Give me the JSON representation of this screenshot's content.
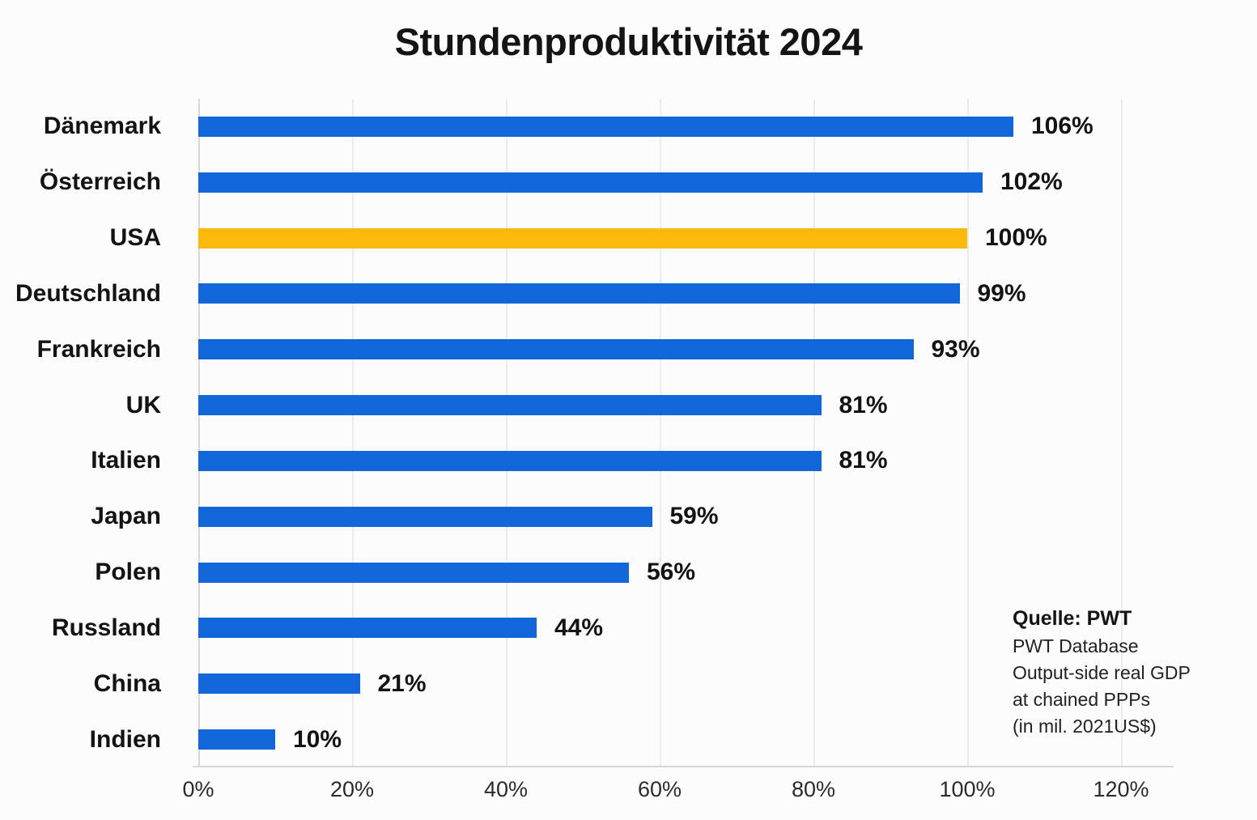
{
  "chart_data": {
    "type": "bar",
    "orientation": "horizontal",
    "title": "Stundenproduktivität 2024",
    "categories": [
      "Dänemark",
      "Österreich",
      "USA",
      "Deutschland",
      "Frankreich",
      "UK",
      "Italien",
      "Japan",
      "Polen",
      "Russland",
      "China",
      "Indien"
    ],
    "values": [
      106,
      102,
      100,
      99,
      93,
      81,
      81,
      59,
      56,
      44,
      21,
      10
    ],
    "value_labels": [
      "106%",
      "102%",
      "100%",
      "99%",
      "93%",
      "81%",
      "81%",
      "59%",
      "56%",
      "44%",
      "21%",
      "10%"
    ],
    "highlight_index": 2,
    "colors": {
      "bar": "#1167d9",
      "highlight": "#fcb80b",
      "background": "#fdfcfc",
      "gridline": "#edebea",
      "axis_line": "#d8d6d5",
      "text": "#141414"
    },
    "xlim": [
      0,
      120
    ],
    "x_ticks": [
      {
        "value": 0,
        "label": "0%"
      },
      {
        "value": 20,
        "label": "20%"
      },
      {
        "value": 40,
        "label": "40%"
      },
      {
        "value": 60,
        "label": "60%"
      },
      {
        "value": 80,
        "label": "80%"
      },
      {
        "value": 100,
        "label": "100%"
      },
      {
        "value": 120,
        "label": "120%"
      }
    ],
    "grid": true,
    "legend": null,
    "source_note": {
      "title": "Quelle: PWT",
      "lines": [
        "PWT Database",
        "Output-side real GDP",
        "at chained PPPs",
        "(in mil. 2021US$)"
      ]
    }
  }
}
